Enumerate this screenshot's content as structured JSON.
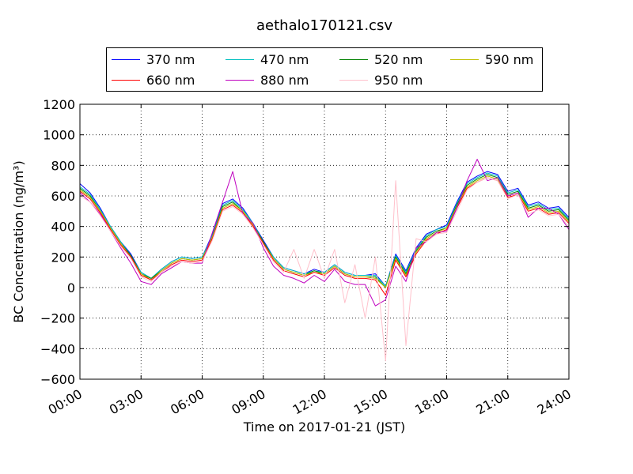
{
  "chart_data": {
    "type": "line",
    "title": "aethalo170121.csv",
    "xlabel": "Time on 2017-01-21 (JST)",
    "ylabel": "BC Concentration (ng/m³)",
    "xlim": [
      "00:00",
      "24:00"
    ],
    "ylim": [
      -600,
      1200
    ],
    "x_ticks": [
      "00:00",
      "03:00",
      "06:00",
      "09:00",
      "12:00",
      "15:00",
      "18:00",
      "21:00",
      "24:00"
    ],
    "y_ticks": [
      "−600",
      "−400",
      "−200",
      "0",
      "200",
      "400",
      "600",
      "800",
      "1000",
      "1200"
    ],
    "grid": true,
    "legend": "top",
    "x": [
      "00:00",
      "00:30",
      "01:00",
      "01:30",
      "02:00",
      "02:30",
      "03:00",
      "03:30",
      "04:00",
      "04:30",
      "05:00",
      "05:30",
      "06:00",
      "06:30",
      "07:00",
      "07:30",
      "08:00",
      "08:30",
      "09:00",
      "09:30",
      "10:00",
      "10:30",
      "11:00",
      "11:30",
      "12:00",
      "12:30",
      "13:00",
      "13:30",
      "14:00",
      "14:30",
      "15:00",
      "15:30",
      "16:00",
      "16:30",
      "17:00",
      "17:30",
      "18:00",
      "18:30",
      "19:00",
      "19:30",
      "20:00",
      "20:30",
      "21:00",
      "21:30",
      "22:00",
      "22:30",
      "23:00",
      "23:30",
      "24:00"
    ],
    "series": [
      {
        "name": "370 nm",
        "color": "#0000ff",
        "values": [
          680,
          620,
          520,
          400,
          300,
          220,
          100,
          60,
          120,
          170,
          200,
          190,
          200,
          350,
          550,
          580,
          520,
          420,
          310,
          200,
          130,
          110,
          90,
          120,
          100,
          150,
          100,
          80,
          80,
          90,
          10,
          220,
          110,
          260,
          350,
          380,
          410,
          560,
          690,
          730,
          760,
          740,
          630,
          650,
          540,
          560,
          520,
          530,
          460
        ]
      },
      {
        "name": "470 nm",
        "color": "#00bfbf",
        "values": [
          660,
          610,
          510,
          400,
          300,
          210,
          100,
          60,
          120,
          170,
          200,
          190,
          200,
          340,
          540,
          570,
          510,
          420,
          300,
          200,
          130,
          110,
          90,
          110,
          100,
          150,
          100,
          80,
          80,
          80,
          10,
          210,
          100,
          250,
          340,
          380,
          400,
          550,
          680,
          720,
          750,
          730,
          620,
          640,
          530,
          550,
          510,
          520,
          450
        ]
      },
      {
        "name": "520 nm",
        "color": "#008000",
        "values": [
          650,
          600,
          500,
          390,
          290,
          210,
          90,
          60,
          110,
          160,
          190,
          180,
          190,
          330,
          530,
          560,
          500,
          410,
          300,
          190,
          120,
          100,
          80,
          110,
          90,
          140,
          90,
          70,
          70,
          70,
          0,
          200,
          90,
          240,
          330,
          370,
          390,
          540,
          670,
          710,
          740,
          720,
          610,
          630,
          520,
          540,
          500,
          510,
          440
        ]
      },
      {
        "name": "590 nm",
        "color": "#bfbf00",
        "values": [
          640,
          590,
          500,
          390,
          290,
          200,
          90,
          50,
          110,
          160,
          190,
          180,
          190,
          330,
          520,
          550,
          500,
          410,
          290,
          190,
          120,
          100,
          80,
          100,
          90,
          140,
          90,
          70,
          70,
          60,
          0,
          190,
          80,
          230,
          320,
          360,
          390,
          530,
          660,
          700,
          730,
          710,
          600,
          620,
          510,
          530,
          490,
          500,
          430
        ]
      },
      {
        "name": "660 nm",
        "color": "#ff0000",
        "values": [
          630,
          580,
          490,
          380,
          280,
          200,
          80,
          50,
          100,
          150,
          180,
          170,
          180,
          320,
          510,
          540,
          490,
          400,
          290,
          180,
          110,
          90,
          70,
          100,
          80,
          130,
          80,
          60,
          60,
          50,
          -50,
          180,
          70,
          220,
          310,
          350,
          380,
          520,
          650,
          690,
          720,
          700,
          590,
          610,
          500,
          520,
          480,
          490,
          420
        ]
      },
      {
        "name": "880 nm",
        "color": "#bf00bf",
        "values": [
          620,
          560,
          480,
          370,
          260,
          160,
          40,
          20,
          90,
          130,
          170,
          160,
          160,
          360,
          560,
          760,
          480,
          420,
          260,
          140,
          80,
          60,
          30,
          80,
          40,
          120,
          40,
          20,
          20,
          -120,
          -80,
          140,
          40,
          260,
          300,
          360,
          370,
          520,
          700,
          840,
          700,
          720,
          600,
          620,
          460,
          520,
          520,
          480,
          380
        ]
      },
      {
        "name": "950 nm",
        "color": "#ffc0cb",
        "values": [
          600,
          560,
          470,
          370,
          270,
          190,
          70,
          40,
          100,
          140,
          170,
          160,
          170,
          310,
          500,
          530,
          480,
          390,
          280,
          170,
          100,
          250,
          60,
          250,
          60,
          250,
          -100,
          150,
          -200,
          200,
          -480,
          700,
          -380,
          320,
          300,
          350,
          360,
          500,
          640,
          690,
          720,
          700,
          580,
          610,
          480,
          510,
          470,
          480,
          400
        ]
      }
    ]
  }
}
